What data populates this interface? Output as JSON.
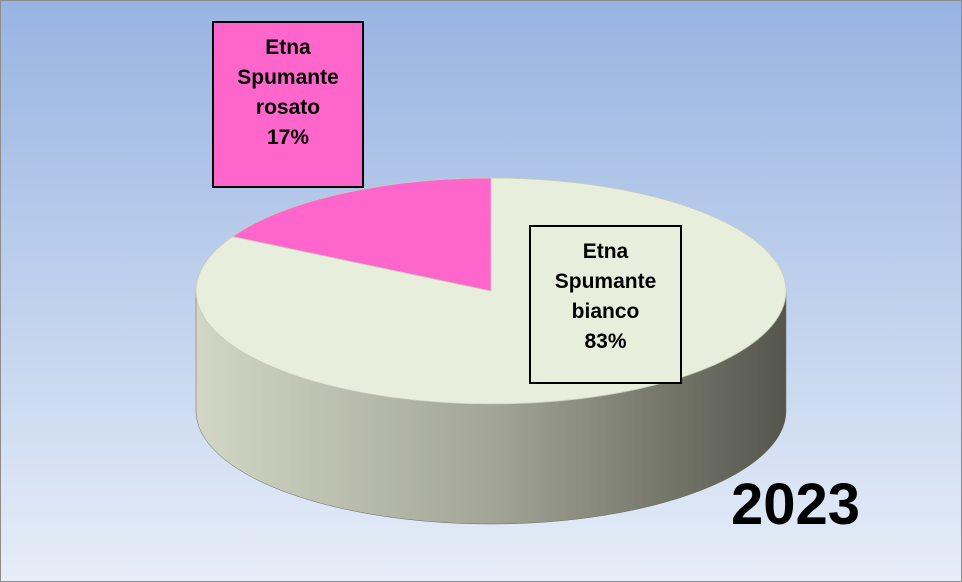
{
  "chart_data": {
    "type": "pie",
    "title": "2023",
    "categories": [
      "Etna Spumante bianco",
      "Etna Spumante rosato"
    ],
    "values": [
      83,
      17
    ],
    "value_labels": [
      "83%",
      "17%"
    ],
    "colors": [
      "#e8eedc",
      "#ff66cc"
    ]
  }
}
